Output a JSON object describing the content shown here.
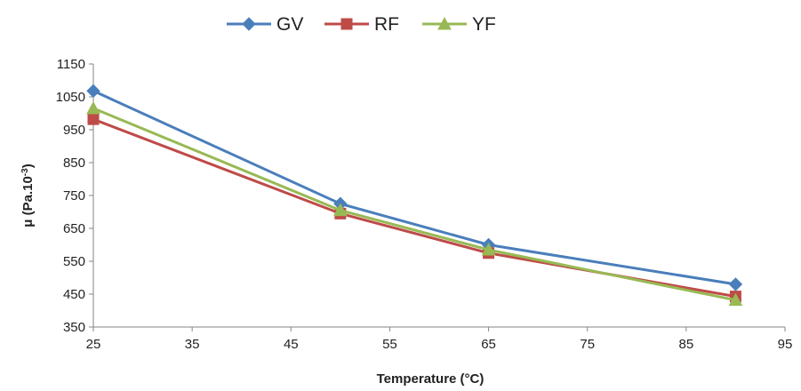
{
  "chart_data": {
    "type": "line",
    "title": "",
    "xlabel": "Temperature (°C)",
    "ylabel_base": "μ (Pa.10",
    "ylabel_sup": "-3",
    "ylabel_close": ")",
    "x": [
      25,
      50,
      65,
      90
    ],
    "xlim": [
      25,
      95
    ],
    "ylim": [
      350,
      1150
    ],
    "xticks": [
      25,
      35,
      45,
      55,
      65,
      75,
      85,
      95
    ],
    "yticks": [
      350,
      450,
      550,
      650,
      750,
      850,
      950,
      1050,
      1150
    ],
    "grid": false,
    "legend_position": "top",
    "series": [
      {
        "name": "GV",
        "color": "#4a7ebb",
        "marker": "diamond",
        "values": [
          1068,
          725,
          600,
          480
        ]
      },
      {
        "name": "RF",
        "color": "#be4b48",
        "marker": "square",
        "values": [
          982,
          695,
          575,
          443
        ]
      },
      {
        "name": "YF",
        "color": "#98b954",
        "marker": "triangle",
        "values": [
          1015,
          705,
          585,
          432
        ]
      }
    ]
  }
}
